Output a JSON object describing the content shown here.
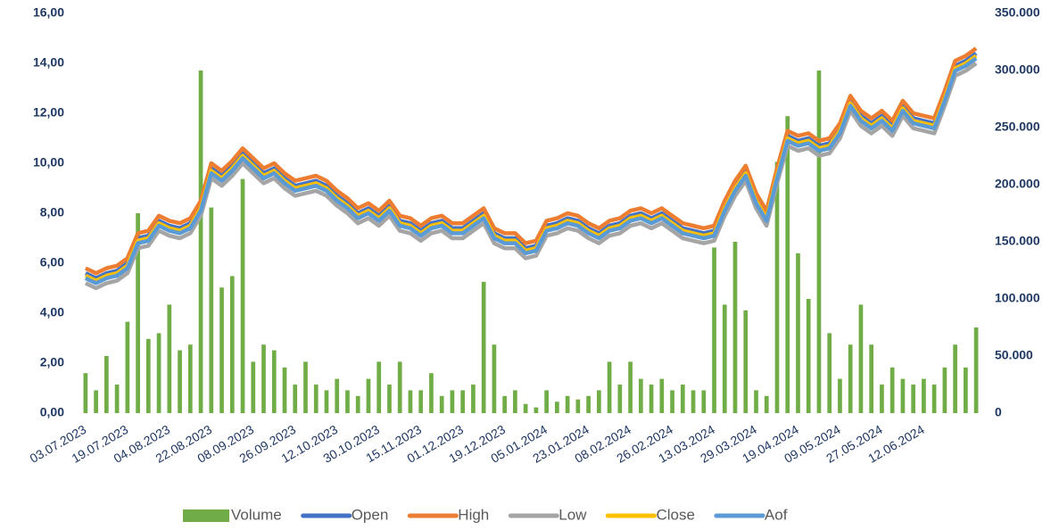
{
  "chart_data": {
    "type": "line",
    "categories": [
      "03.07.2023",
      null,
      null,
      null,
      "19.07.2023",
      null,
      null,
      null,
      "04.08.2023",
      null,
      null,
      null,
      "22.08.2023",
      null,
      null,
      null,
      "08.09.2023",
      null,
      null,
      null,
      "26.09.2023",
      null,
      null,
      null,
      "12.10.2023",
      null,
      null,
      null,
      "30.10.2023",
      null,
      null,
      null,
      "15.11.2023",
      null,
      null,
      null,
      "01.12.2023",
      null,
      null,
      null,
      "19.12.2023",
      null,
      null,
      null,
      "05.01.2024",
      null,
      null,
      null,
      "23.01.2024",
      null,
      null,
      null,
      "08.02.2024",
      null,
      null,
      null,
      "26.02.2024",
      null,
      null,
      null,
      "13.03.2024",
      null,
      null,
      null,
      "29.03.2024",
      null,
      null,
      null,
      "19.04.2024",
      null,
      null,
      null,
      "09.05.2024",
      null,
      null,
      null,
      "27.05.2024",
      null,
      null,
      null,
      "12.06.2024",
      null,
      null,
      null,
      null,
      null
    ],
    "series": [
      {
        "name": "Volume",
        "type": "bar",
        "axis": "y2",
        "color": "#70ad47",
        "values": [
          35000,
          20000,
          50000,
          25000,
          80000,
          175000,
          65000,
          70000,
          95000,
          55000,
          60000,
          300000,
          180000,
          110000,
          120000,
          205000,
          45000,
          60000,
          55000,
          40000,
          25000,
          45000,
          25000,
          20000,
          30000,
          20000,
          15000,
          30000,
          45000,
          25000,
          45000,
          20000,
          20000,
          35000,
          15000,
          20000,
          20000,
          25000,
          115000,
          60000,
          15000,
          20000,
          8000,
          5000,
          20000,
          10000,
          15000,
          12000,
          15000,
          20000,
          45000,
          25000,
          45000,
          30000,
          25000,
          30000,
          20000,
          25000,
          20000,
          20000,
          145000,
          95000,
          150000,
          90000,
          20000,
          15000,
          220000,
          260000,
          140000,
          100000,
          300000,
          70000,
          30000,
          60000,
          95000,
          60000,
          25000,
          40000,
          30000,
          25000,
          30000,
          25000,
          40000,
          60000,
          40000,
          75000
        ]
      },
      {
        "name": "Open",
        "type": "line",
        "color": "#4472c4",
        "values": [
          5.6,
          5.4,
          5.6,
          5.7,
          6.0,
          7.0,
          7.1,
          7.7,
          7.5,
          7.4,
          7.6,
          8.3,
          9.8,
          9.5,
          9.9,
          10.4,
          10.0,
          9.6,
          9.8,
          9.4,
          9.1,
          9.2,
          9.3,
          9.1,
          8.7,
          8.4,
          8.0,
          8.2,
          7.9,
          8.3,
          7.7,
          7.6,
          7.3,
          7.6,
          7.7,
          7.4,
          7.4,
          7.7,
          8.0,
          7.2,
          7.0,
          7.0,
          6.6,
          6.7,
          7.5,
          7.6,
          7.8,
          7.7,
          7.4,
          7.2,
          7.5,
          7.6,
          7.9,
          8.0,
          7.8,
          8.0,
          7.7,
          7.4,
          7.3,
          7.2,
          7.3,
          8.3,
          9.1,
          9.7,
          8.6,
          7.9,
          9.6,
          11.1,
          10.9,
          11.0,
          10.7,
          10.8,
          11.4,
          12.5,
          11.9,
          11.6,
          11.9,
          11.5,
          12.3,
          11.8,
          11.7,
          11.6,
          12.7,
          13.9,
          14.1,
          14.4
        ]
      },
      {
        "name": "High",
        "type": "line",
        "color": "#ed7d31",
        "values": [
          5.8,
          5.6,
          5.8,
          5.9,
          6.2,
          7.2,
          7.3,
          7.9,
          7.7,
          7.6,
          7.8,
          8.5,
          10.0,
          9.7,
          10.1,
          10.6,
          10.2,
          9.8,
          10.0,
          9.6,
          9.3,
          9.4,
          9.5,
          9.3,
          8.9,
          8.6,
          8.2,
          8.4,
          8.1,
          8.5,
          7.9,
          7.8,
          7.5,
          7.8,
          7.9,
          7.6,
          7.6,
          7.9,
          8.2,
          7.4,
          7.2,
          7.2,
          6.8,
          6.9,
          7.7,
          7.8,
          8.0,
          7.9,
          7.6,
          7.4,
          7.7,
          7.8,
          8.1,
          8.2,
          8.0,
          8.2,
          7.9,
          7.6,
          7.5,
          7.4,
          7.5,
          8.5,
          9.3,
          9.9,
          8.8,
          8.1,
          9.8,
          11.3,
          11.1,
          11.2,
          10.9,
          11.0,
          11.6,
          12.7,
          12.1,
          11.8,
          12.1,
          11.7,
          12.5,
          12.0,
          11.9,
          11.8,
          12.9,
          14.1,
          14.3,
          14.6
        ]
      },
      {
        "name": "Low",
        "type": "line",
        "color": "#a5a5a5",
        "values": [
          5.2,
          5.0,
          5.2,
          5.3,
          5.6,
          6.6,
          6.7,
          7.3,
          7.1,
          7.0,
          7.2,
          7.9,
          9.4,
          9.1,
          9.5,
          10.0,
          9.6,
          9.2,
          9.4,
          9.0,
          8.7,
          8.8,
          8.9,
          8.7,
          8.3,
          8.0,
          7.6,
          7.8,
          7.5,
          7.9,
          7.3,
          7.2,
          6.9,
          7.2,
          7.3,
          7.0,
          7.0,
          7.3,
          7.6,
          6.8,
          6.6,
          6.6,
          6.2,
          6.3,
          7.1,
          7.2,
          7.4,
          7.3,
          7.0,
          6.8,
          7.1,
          7.2,
          7.5,
          7.6,
          7.4,
          7.6,
          7.3,
          7.0,
          6.9,
          6.8,
          6.9,
          7.9,
          8.7,
          9.3,
          8.2,
          7.5,
          9.2,
          10.7,
          10.5,
          10.6,
          10.3,
          10.4,
          11.0,
          12.1,
          11.5,
          11.2,
          11.5,
          11.1,
          11.9,
          11.4,
          11.3,
          11.2,
          12.3,
          13.5,
          13.7,
          14.0
        ]
      },
      {
        "name": "Close",
        "type": "line",
        "color": "#ffc000",
        "values": [
          5.5,
          5.3,
          5.5,
          5.6,
          5.9,
          6.9,
          7.0,
          7.6,
          7.4,
          7.3,
          7.5,
          8.2,
          9.7,
          9.4,
          9.8,
          10.3,
          9.9,
          9.5,
          9.7,
          9.3,
          9.0,
          9.1,
          9.2,
          9.0,
          8.6,
          8.3,
          7.9,
          8.1,
          7.8,
          8.2,
          7.6,
          7.5,
          7.2,
          7.5,
          7.6,
          7.3,
          7.3,
          7.6,
          7.9,
          7.1,
          6.9,
          6.9,
          6.5,
          6.6,
          7.4,
          7.5,
          7.7,
          7.6,
          7.3,
          7.1,
          7.4,
          7.5,
          7.8,
          7.9,
          7.7,
          7.9,
          7.6,
          7.3,
          7.2,
          7.1,
          7.2,
          8.2,
          9.0,
          9.6,
          8.5,
          7.8,
          9.5,
          11.0,
          10.8,
          10.9,
          10.6,
          10.7,
          11.3,
          12.4,
          11.8,
          11.5,
          11.8,
          11.4,
          12.2,
          11.7,
          11.6,
          11.5,
          12.6,
          13.8,
          14.0,
          14.3
        ]
      },
      {
        "name": "Aof",
        "type": "line",
        "color": "#5b9bd5",
        "values": [
          5.4,
          5.2,
          5.4,
          5.5,
          5.8,
          6.8,
          6.9,
          7.5,
          7.3,
          7.2,
          7.4,
          8.1,
          9.6,
          9.3,
          9.7,
          10.2,
          9.8,
          9.4,
          9.6,
          9.2,
          8.9,
          9.0,
          9.1,
          8.9,
          8.5,
          8.2,
          7.8,
          8.0,
          7.7,
          8.1,
          7.5,
          7.4,
          7.1,
          7.4,
          7.5,
          7.2,
          7.2,
          7.5,
          7.8,
          7.0,
          6.8,
          6.8,
          6.4,
          6.5,
          7.3,
          7.4,
          7.6,
          7.5,
          7.2,
          7.0,
          7.3,
          7.4,
          7.7,
          7.8,
          7.6,
          7.8,
          7.5,
          7.2,
          7.1,
          7.0,
          7.1,
          8.1,
          8.9,
          9.5,
          8.4,
          7.7,
          9.4,
          10.9,
          10.7,
          10.8,
          10.5,
          10.6,
          11.2,
          12.3,
          11.7,
          11.4,
          11.7,
          11.3,
          12.1,
          11.6,
          11.5,
          11.4,
          12.5,
          13.7,
          13.9,
          14.2
        ]
      }
    ],
    "ylim": [
      0,
      16
    ],
    "yticks": [
      {
        "value": 0,
        "label": "0,00"
      },
      {
        "value": 2,
        "label": "2,00"
      },
      {
        "value": 4,
        "label": "4,00"
      },
      {
        "value": 6,
        "label": "6,00"
      },
      {
        "value": 8,
        "label": "8,00"
      },
      {
        "value": 10,
        "label": "10,00"
      },
      {
        "value": 12,
        "label": "12,00"
      },
      {
        "value": 14,
        "label": "14,00"
      },
      {
        "value": 16,
        "label": "16,00"
      }
    ],
    "y2lim": [
      0,
      350000
    ],
    "y2ticks": [
      0,
      {
        "value": 50000,
        "label": "50.000"
      },
      {
        "value": 100000,
        "label": "100.000"
      },
      {
        "value": 150000,
        "label": "150.000"
      },
      {
        "value": 200000,
        "label": "200.000"
      },
      {
        "value": 250000,
        "label": "250.000"
      },
      {
        "value": 300000,
        "label": "300.000"
      },
      {
        "value": 350000,
        "label": "350.000"
      }
    ],
    "grid": false,
    "legend": "bottom"
  }
}
